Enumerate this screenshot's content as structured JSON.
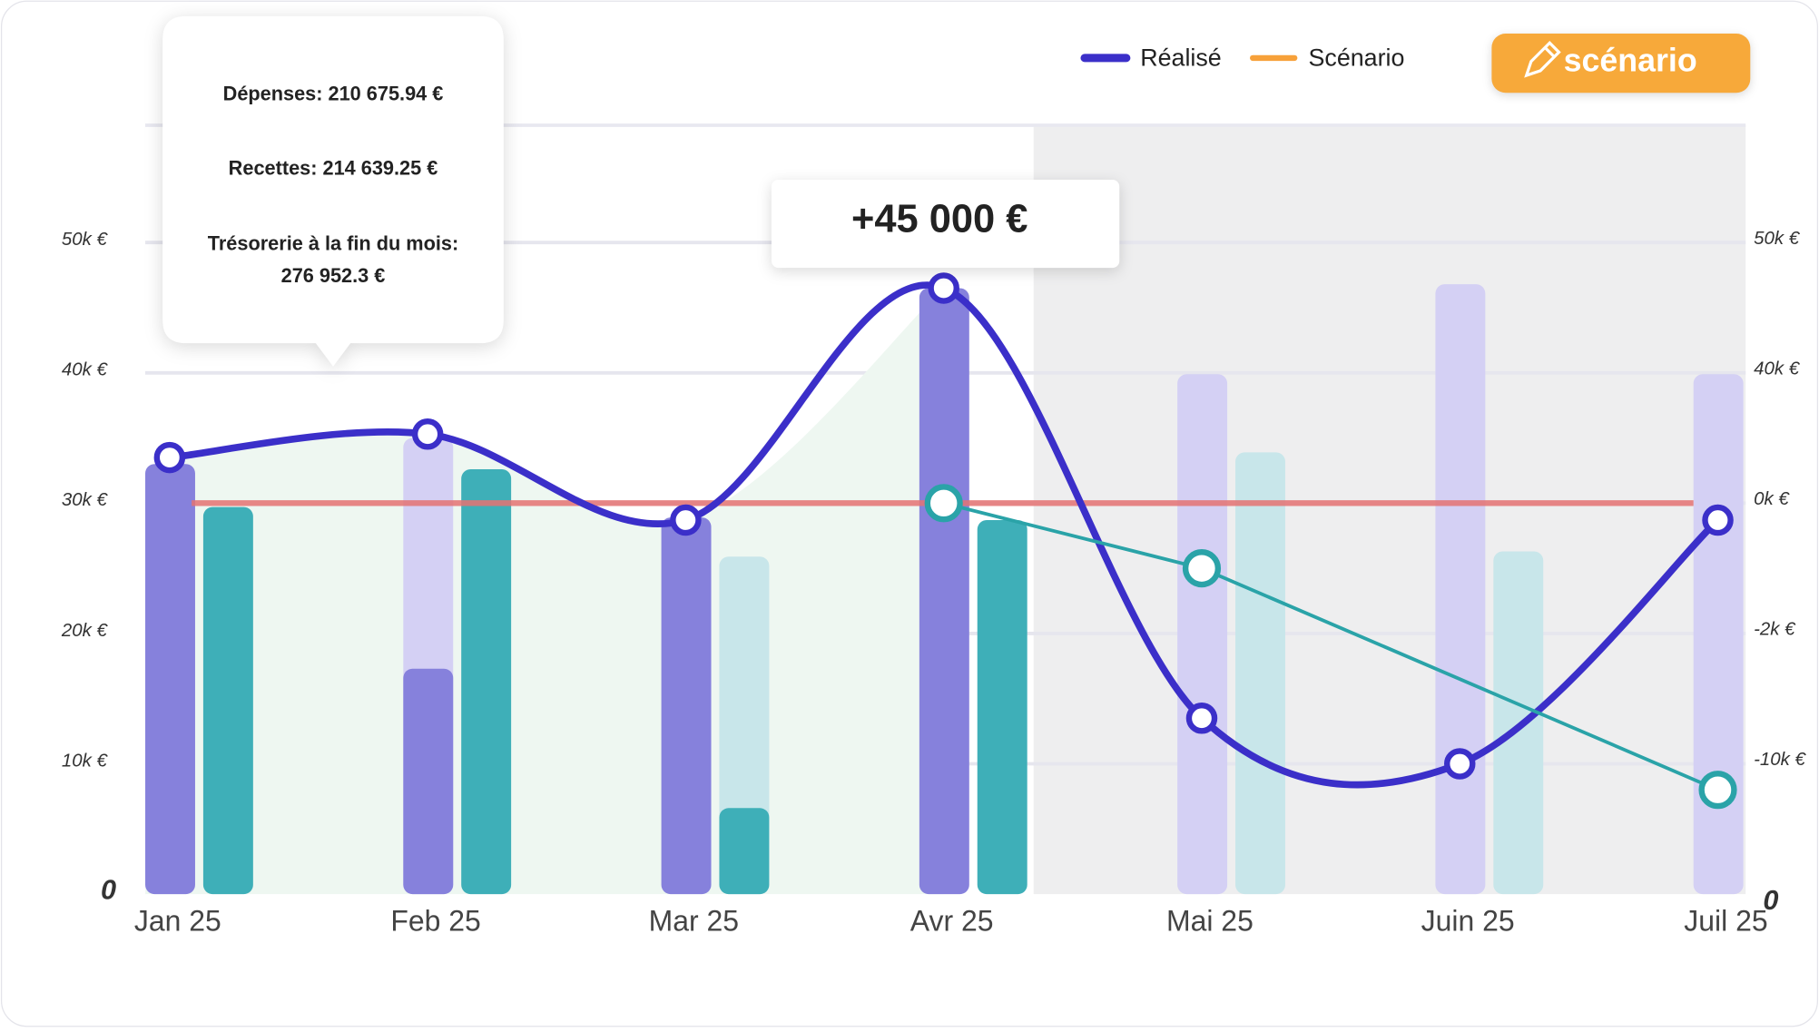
{
  "chart_data": {
    "type": "combo",
    "categories": [
      "Jan 25",
      "Feb 25",
      "Mar 25",
      "Avr 25",
      "Mai 25",
      "Juin 25",
      "Juil 25"
    ],
    "ylim": [
      0,
      59000
    ],
    "yticks": [
      {
        "value": 0,
        "label": "0"
      },
      {
        "value": 10000,
        "label": "10k €"
      },
      {
        "value": 20000,
        "label": "20k €"
      },
      {
        "value": 30000,
        "label": "30k €"
      },
      {
        "value": 40000,
        "label": "40k €"
      },
      {
        "value": 50000,
        "label": "50k €"
      }
    ],
    "y2_labels": [
      "0",
      "-10k €",
      "-2k €",
      "0k €",
      "40k €",
      "50k €"
    ],
    "reference_line": 30000,
    "forecast_from": 4,
    "bars": {
      "expenses": {
        "color": "#8681dc",
        "planned_color": "#d4d0f4",
        "actual": [
          33000,
          17300,
          28900,
          46500,
          null,
          null,
          null
        ],
        "planned": [
          null,
          35000,
          null,
          null,
          39900,
          46800,
          39900
        ]
      },
      "income": {
        "color": "#3eafb8",
        "planned_color": "#c8e6ea",
        "actual": [
          29700,
          32600,
          6600,
          28700,
          null,
          null,
          null
        ],
        "planned": [
          null,
          null,
          25900,
          null,
          33900,
          26300,
          null
        ]
      }
    },
    "series": [
      {
        "name": "Réalisé",
        "color": "#3b2fc9",
        "values": [
          33500,
          35300,
          28700,
          46500,
          13500,
          10000,
          28700
        ]
      },
      {
        "name": "Scénario",
        "color": "#f7a13a",
        "line_color": "#2aa3a8",
        "values": [
          null,
          null,
          null,
          30000,
          25000,
          null,
          8000
        ]
      }
    ],
    "tooltip": [
      "Dépenses: 210 675.94 €",
      "Recettes: 214 639.25 €",
      "Trésorerie à la fin du mois:",
      "276 952.3 €"
    ],
    "annotation": "+45 000 €",
    "button": "scénario"
  }
}
